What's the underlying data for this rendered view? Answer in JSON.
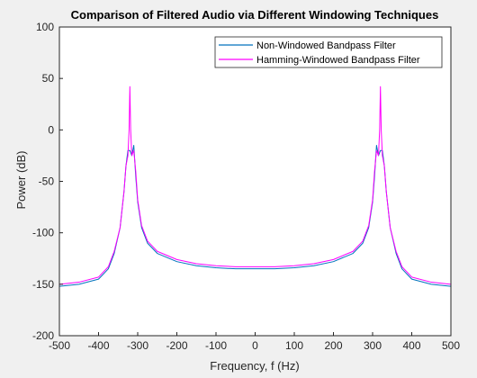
{
  "chart_data": {
    "type": "line",
    "title": "Comparison of Filtered Audio via Different Windowing Techniques",
    "xlabel": "Frequency, f (Hz)",
    "ylabel": "Power (dB)",
    "xlim": [
      -500,
      500
    ],
    "ylim": [
      -200,
      100
    ],
    "xticks": [
      -500,
      -400,
      -300,
      -200,
      -100,
      0,
      100,
      200,
      300,
      400,
      500
    ],
    "yticks": [
      100,
      50,
      0,
      -50,
      -100,
      -150,
      -200
    ],
    "grid": false,
    "legend_position": "top-right",
    "series": [
      {
        "name": "Non-Windowed Bandpass Filter",
        "color": "#0072bd",
        "x": [
          -500,
          -450,
          -400,
          -375,
          -360,
          -345,
          -335,
          -330,
          -325,
          -320,
          -315,
          -310,
          -305,
          -300,
          -290,
          -275,
          -250,
          -200,
          -150,
          -100,
          -50,
          0,
          50,
          100,
          150,
          200,
          250,
          275,
          290,
          300,
          305,
          310,
          315,
          320,
          325,
          330,
          335,
          345,
          360,
          375,
          400,
          450,
          500
        ],
        "y": [
          -152,
          -150,
          -145,
          -135,
          -120,
          -95,
          -60,
          -35,
          -20,
          -20,
          -25,
          -15,
          -45,
          -70,
          -95,
          -110,
          -120,
          -128,
          -132,
          -134,
          -135,
          -135,
          -135,
          -134,
          -132,
          -128,
          -120,
          -110,
          -95,
          -70,
          -45,
          -15,
          -25,
          -20,
          -20,
          -35,
          -60,
          -95,
          -120,
          -135,
          -145,
          -150,
          -152
        ]
      },
      {
        "name": "Hamming-Windowed Bandpass Filter",
        "color": "#ff00ff",
        "x": [
          -500,
          -450,
          -400,
          -375,
          -360,
          -345,
          -335,
          -330,
          -325,
          -322,
          -320,
          -318,
          -315,
          -310,
          -305,
          -300,
          -290,
          -275,
          -250,
          -200,
          -150,
          -100,
          -50,
          0,
          50,
          100,
          150,
          200,
          250,
          275,
          290,
          300,
          305,
          310,
          315,
          318,
          320,
          322,
          325,
          330,
          335,
          345,
          360,
          375,
          400,
          450,
          500
        ],
        "y": [
          -150,
          -148,
          -143,
          -133,
          -118,
          -95,
          -60,
          -35,
          -25,
          0,
          42,
          0,
          -25,
          -20,
          -40,
          -68,
          -93,
          -108,
          -118,
          -126,
          -130,
          -132,
          -133,
          -133,
          -133,
          -132,
          -130,
          -126,
          -118,
          -108,
          -93,
          -68,
          -40,
          -20,
          -25,
          0,
          42,
          0,
          -25,
          -35,
          -60,
          -95,
          -118,
          -133,
          -143,
          -148,
          -150
        ]
      }
    ]
  }
}
